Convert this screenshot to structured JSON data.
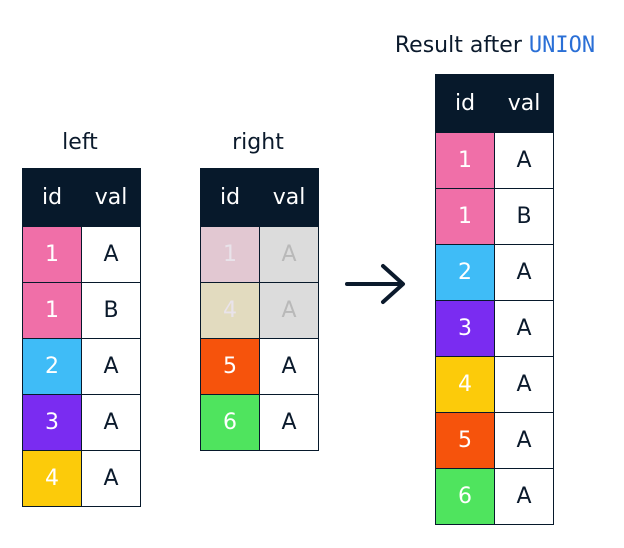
{
  "tables": {
    "left": {
      "title": "left",
      "columns": [
        "id",
        "val"
      ],
      "rows": [
        {
          "id": "1",
          "val": "A",
          "color": "#f06fa8",
          "faded": false
        },
        {
          "id": "1",
          "val": "B",
          "color": "#f06fa8",
          "faded": false
        },
        {
          "id": "2",
          "val": "A",
          "color": "#3fbcf7",
          "faded": false
        },
        {
          "id": "3",
          "val": "A",
          "color": "#7a2cf1",
          "faded": false
        },
        {
          "id": "4",
          "val": "A",
          "color": "#fccb0a",
          "faded": false
        }
      ]
    },
    "right": {
      "title": "right",
      "columns": [
        "id",
        "val"
      ],
      "rows": [
        {
          "id": "1",
          "val": "A",
          "color": "#e2c8d2",
          "val_color": "#dcdcdc",
          "faded": true
        },
        {
          "id": "4",
          "val": "A",
          "color": "#e2dbbf",
          "val_color": "#dcdcdc",
          "faded": true
        },
        {
          "id": "5",
          "val": "A",
          "color": "#f6530c",
          "faded": false
        },
        {
          "id": "6",
          "val": "A",
          "color": "#4fe45e",
          "faded": false
        }
      ]
    },
    "result": {
      "title_prefix": "Result after",
      "title_keyword": "UNION",
      "columns": [
        "id",
        "val"
      ],
      "rows": [
        {
          "id": "1",
          "val": "A",
          "color": "#f06fa8",
          "faded": false
        },
        {
          "id": "1",
          "val": "B",
          "color": "#f06fa8",
          "faded": false
        },
        {
          "id": "2",
          "val": "A",
          "color": "#3fbcf7",
          "faded": false
        },
        {
          "id": "3",
          "val": "A",
          "color": "#7a2cf1",
          "faded": false
        },
        {
          "id": "4",
          "val": "A",
          "color": "#fccb0a",
          "faded": false
        },
        {
          "id": "5",
          "val": "A",
          "color": "#f6530c",
          "faded": false
        },
        {
          "id": "6",
          "val": "A",
          "color": "#4fe45e",
          "faded": false
        }
      ]
    }
  },
  "arrow": {
    "icon": "arrow-right-icon"
  },
  "colors": {
    "header_bg": "#07192b",
    "keyword": "#2a6fd6"
  }
}
